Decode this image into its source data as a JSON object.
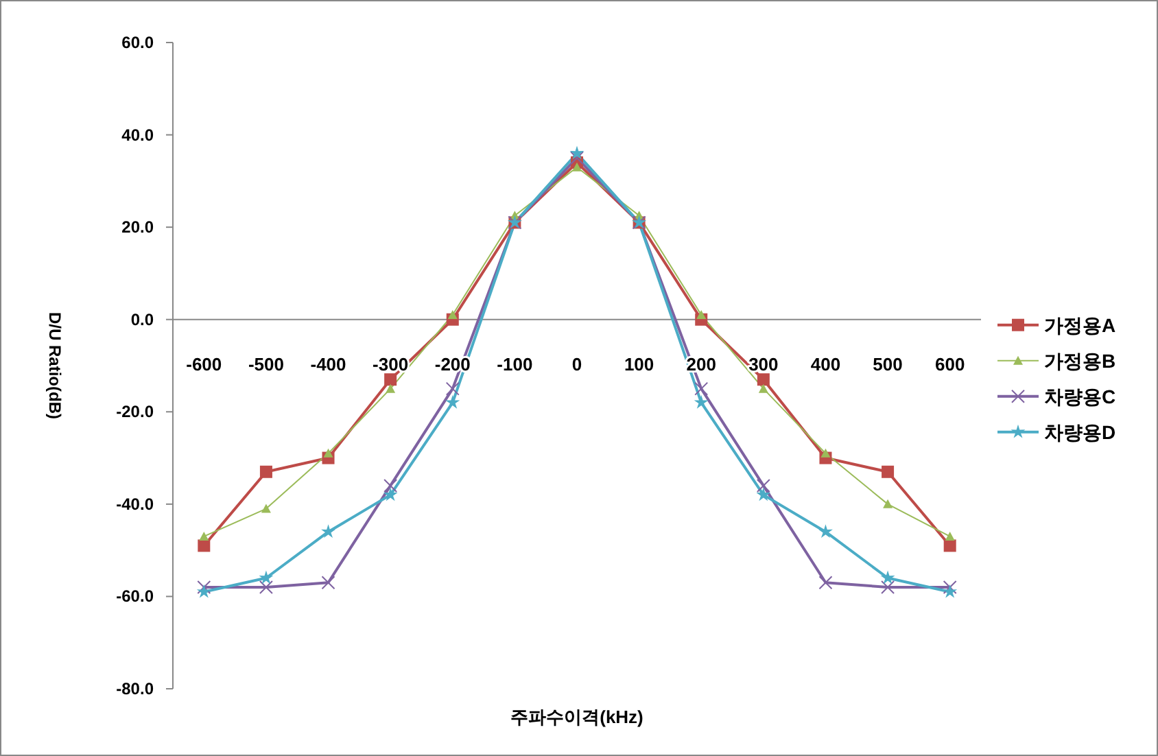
{
  "chart_data": {
    "type": "line",
    "xlabel": "주파수이격(kHz)",
    "ylabel": "D/U Ratio(dB)",
    "categories": [
      "-600",
      "-500",
      "-400",
      "-300",
      "-200",
      "-100",
      "0",
      "100",
      "200",
      "300",
      "400",
      "500",
      "600"
    ],
    "ylim": [
      -80,
      60
    ],
    "yticks": [
      {
        "value": -80,
        "label": "-80.0"
      },
      {
        "value": -60,
        "label": "-60.0"
      },
      {
        "value": -40,
        "label": "-40.0"
      },
      {
        "value": -20,
        "label": "-20.0"
      },
      {
        "value": 0,
        "label": "0.0"
      },
      {
        "value": 20,
        "label": "20.0"
      },
      {
        "value": 40,
        "label": "40.0"
      },
      {
        "value": 60,
        "label": "60.0"
      }
    ],
    "grid": false,
    "legend": "right",
    "series": [
      {
        "name": "가정용A",
        "color": "#be4b48",
        "marker": "square",
        "values": [
          -49,
          -33,
          -30,
          -13,
          0,
          21,
          34,
          21,
          0,
          -13,
          -30,
          -33,
          -49
        ]
      },
      {
        "name": "가정용B",
        "color": "#9bbb59",
        "marker": "triangle",
        "values": [
          -47,
          -41,
          -29,
          -15,
          1,
          22.5,
          33,
          22.5,
          1,
          -15,
          -29,
          -40,
          -47
        ]
      },
      {
        "name": "차량용C",
        "color": "#7e62a1",
        "marker": "cross",
        "values": [
          -58,
          -58,
          -57,
          -36,
          -15,
          21,
          35,
          21,
          -15,
          -36,
          -57,
          -58,
          -58
        ]
      },
      {
        "name": "차량용D",
        "color": "#4bacc6",
        "marker": "star",
        "values": [
          -59,
          -56,
          -46,
          -38,
          -18,
          21,
          36,
          21,
          -18,
          -38,
          -46,
          -56,
          -59
        ]
      }
    ]
  }
}
